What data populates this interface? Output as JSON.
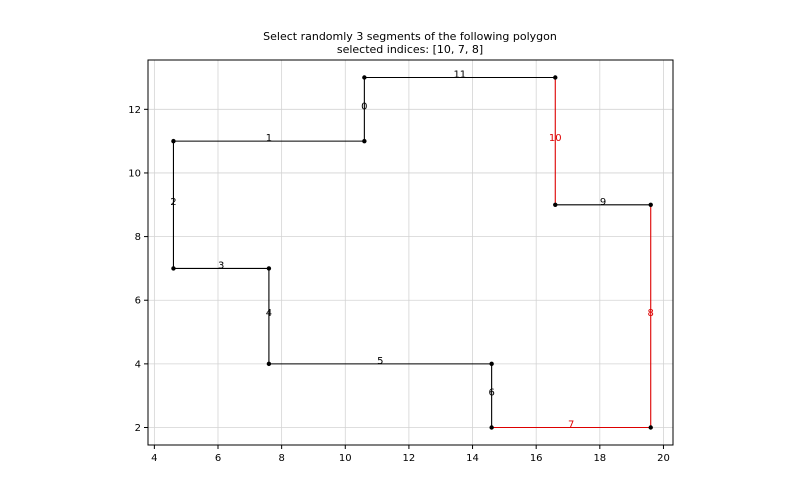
{
  "chart_data": {
    "type": "line",
    "title": "Select randomly 3 segments of the following polygon",
    "subtitle": "selected indices: [10, 7, 8]",
    "xlim": [
      3.8,
      20.3
    ],
    "ylim": [
      1.45,
      13.55
    ],
    "x_ticks": [
      4,
      6,
      8,
      10,
      12,
      14,
      16,
      18,
      20
    ],
    "y_ticks": [
      2,
      4,
      6,
      8,
      10,
      12
    ],
    "grid": true,
    "colors": {
      "normal": "#000000",
      "selected": "#dd0000",
      "grid": "#d3d3d3",
      "vertex": "#000000"
    },
    "vertices": [
      [
        10.6,
        11
      ],
      [
        10.6,
        13
      ],
      [
        16.6,
        13
      ],
      [
        16.6,
        9
      ],
      [
        19.6,
        9
      ],
      [
        19.6,
        2
      ],
      [
        14.6,
        2
      ],
      [
        14.6,
        4
      ],
      [
        7.6,
        4
      ],
      [
        7.6,
        7
      ],
      [
        4.6,
        7
      ],
      [
        4.6,
        11
      ]
    ],
    "segments": [
      {
        "index": "0",
        "from": [
          10.6,
          11
        ],
        "to": [
          10.6,
          13
        ],
        "selected": false
      },
      {
        "index": "1",
        "from": [
          4.6,
          11
        ],
        "to": [
          10.6,
          11
        ],
        "selected": false
      },
      {
        "index": "2",
        "from": [
          4.6,
          7
        ],
        "to": [
          4.6,
          11
        ],
        "selected": false
      },
      {
        "index": "3",
        "from": [
          4.6,
          7
        ],
        "to": [
          7.6,
          7
        ],
        "selected": false
      },
      {
        "index": "4",
        "from": [
          7.6,
          4
        ],
        "to": [
          7.6,
          7
        ],
        "selected": false
      },
      {
        "index": "5",
        "from": [
          7.6,
          4
        ],
        "to": [
          14.6,
          4
        ],
        "selected": false
      },
      {
        "index": "6",
        "from": [
          14.6,
          2
        ],
        "to": [
          14.6,
          4
        ],
        "selected": false
      },
      {
        "index": "7",
        "from": [
          14.6,
          2
        ],
        "to": [
          19.6,
          2
        ],
        "selected": true
      },
      {
        "index": "8",
        "from": [
          19.6,
          2
        ],
        "to": [
          19.6,
          9
        ],
        "selected": true
      },
      {
        "index": "9",
        "from": [
          16.6,
          9
        ],
        "to": [
          19.6,
          9
        ],
        "selected": false
      },
      {
        "index": "10",
        "from": [
          16.6,
          9
        ],
        "to": [
          16.6,
          13
        ],
        "selected": true
      },
      {
        "index": "11",
        "from": [
          10.6,
          13
        ],
        "to": [
          16.6,
          13
        ],
        "selected": false
      }
    ]
  }
}
